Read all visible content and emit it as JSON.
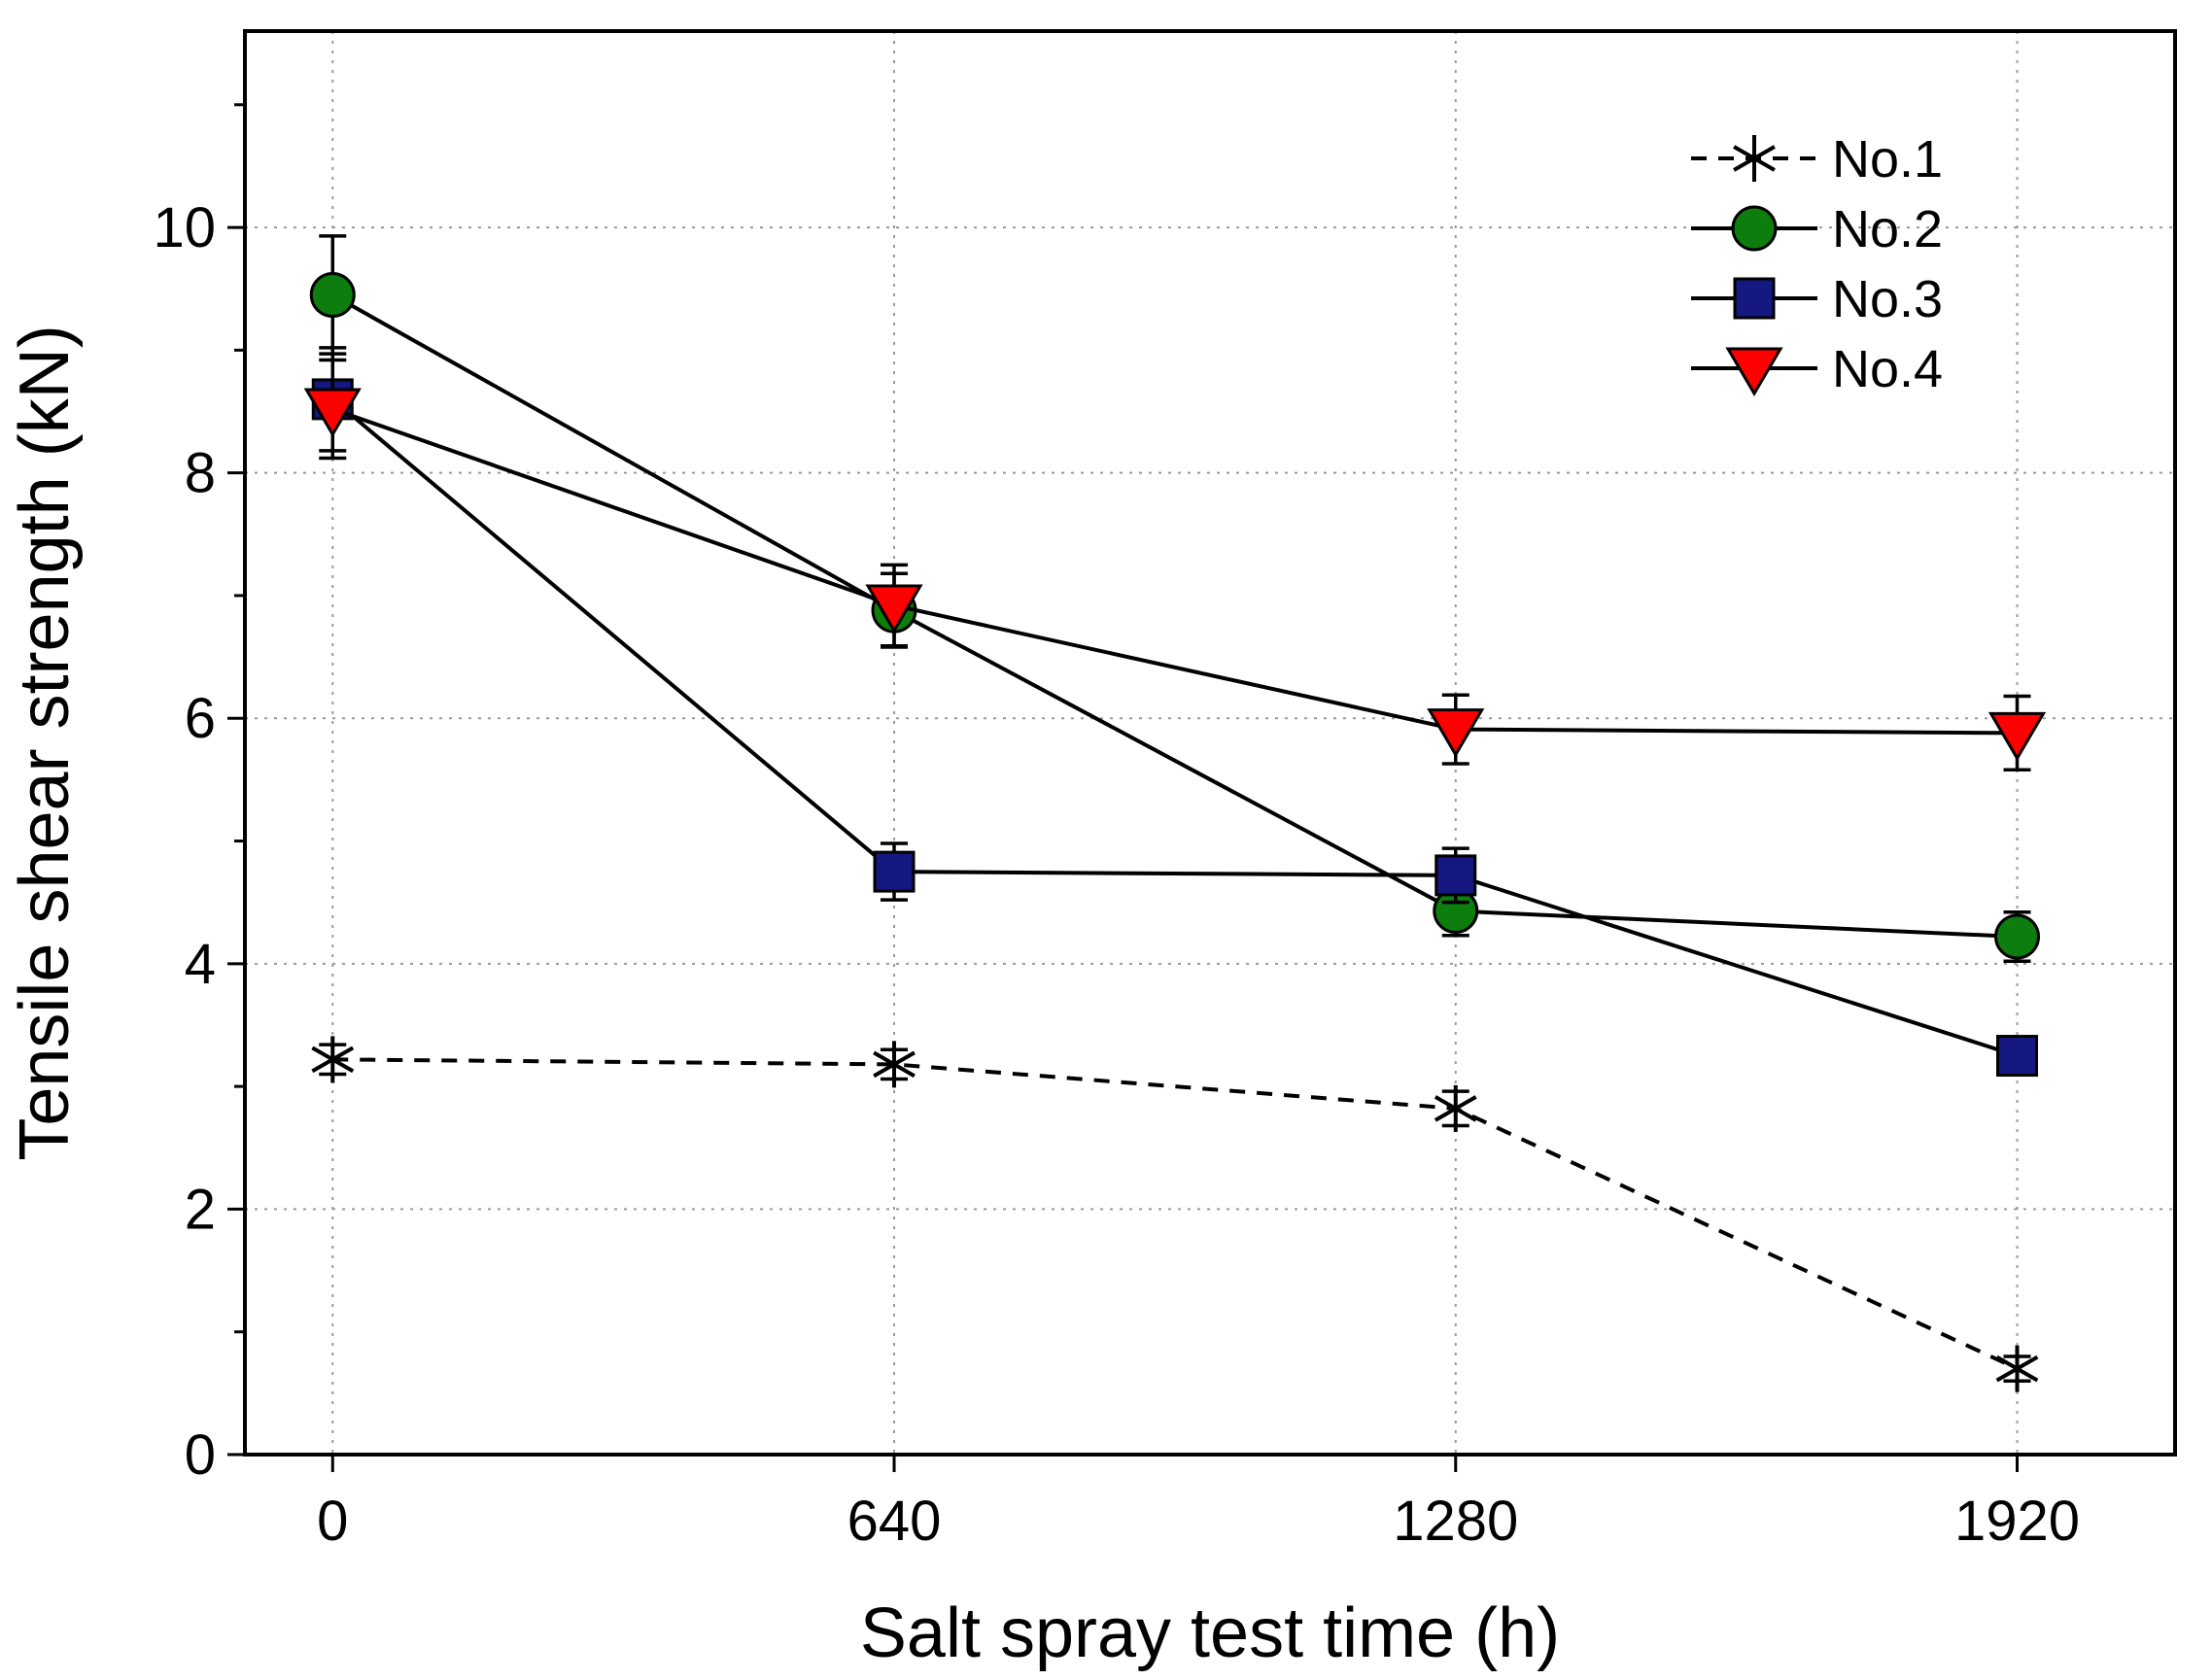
{
  "chart_data": {
    "type": "line",
    "title": "",
    "xlabel": "Salt spray test time (h)",
    "ylabel": "Tensile shear strength (kN)",
    "x": [
      0,
      640,
      1280,
      1920
    ],
    "x_tick_labels": [
      "0",
      "640",
      "1280",
      "1920"
    ],
    "y_ticks": [
      0,
      2,
      4,
      6,
      8,
      10
    ],
    "y_tick_labels": [
      "0",
      "2",
      "4",
      "6",
      "8",
      "10"
    ],
    "xlim": [
      -100,
      2100
    ],
    "ylim": [
      0,
      11.6
    ],
    "grid": true,
    "legend_position": "top-right",
    "series": [
      {
        "name": "No.1",
        "marker": "asterisk",
        "line": "dashed",
        "color": "#000000",
        "values": [
          3.22,
          3.18,
          2.82,
          0.7
        ],
        "errors": [
          0.12,
          0.12,
          0.14,
          0.1
        ]
      },
      {
        "name": "No.2",
        "marker": "circle",
        "line": "solid",
        "color": "#0d7d0d",
        "values": [
          9.45,
          6.88,
          4.43,
          4.22
        ],
        "errors": [
          0.48,
          0.3,
          0.2,
          0.2
        ]
      },
      {
        "name": "No.3",
        "marker": "square",
        "line": "solid",
        "color": "#141880",
        "values": [
          8.6,
          4.75,
          4.72,
          3.25
        ],
        "errors": [
          0.42,
          0.23,
          0.22,
          0.08
        ]
      },
      {
        "name": "No.4",
        "marker": "triangle-down",
        "line": "solid",
        "color": "#ff0000",
        "values": [
          8.52,
          6.92,
          5.91,
          5.88
        ],
        "errors": [
          0.4,
          0.33,
          0.28,
          0.3
        ]
      }
    ]
  }
}
